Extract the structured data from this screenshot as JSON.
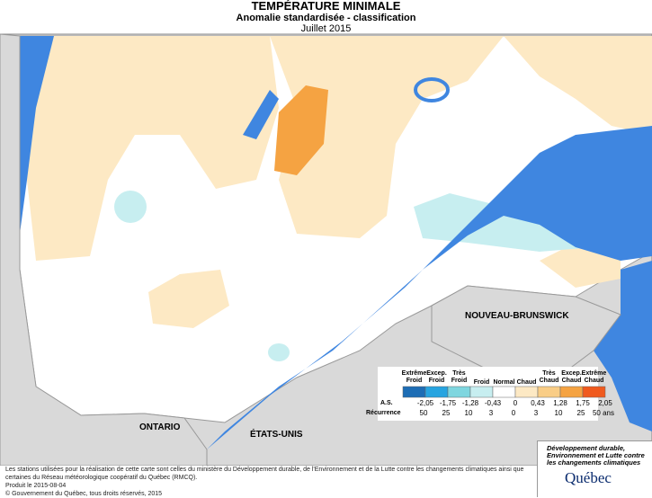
{
  "header": {
    "title": "TEMPÉRATURE MINIMALE",
    "subtitle": "Anomalie standardisée - classification",
    "date": "Juillet 2015"
  },
  "map_labels": [
    "ONTARIO",
    "ÉTATS-UNIS",
    "NOUVEAU-BRUNSWICK"
  ],
  "legend": {
    "classes": [
      {
        "label": "Extrême Froid",
        "color": "#1d6db5"
      },
      {
        "label": "Excep. Froid",
        "color": "#27a4e0"
      },
      {
        "label": "Très Froid",
        "color": "#7fd6df"
      },
      {
        "label": "Froid",
        "color": "#c7eef0"
      },
      {
        "label": "Normal",
        "color": "#ffffff"
      },
      {
        "label": "Chaud",
        "color": "#fde9c4"
      },
      {
        "label": "Très Chaud",
        "color": "#f9cd86"
      },
      {
        "label": "Excep. Chaud",
        "color": "#f5a342"
      },
      {
        "label": "Extrême Chaud",
        "color": "#f05a1e"
      }
    ],
    "as_label": "A.S.",
    "as_values": [
      "-2,05",
      "-1,75",
      "-1,28",
      "-0,43",
      "0",
      "0,43",
      "1,28",
      "1,75",
      "2,05"
    ],
    "recurrence_label": "Récurrence",
    "recurrence_values": [
      "50",
      "25",
      "10",
      "3",
      "0",
      "3",
      "10",
      "25",
      "50 ans"
    ]
  },
  "footer": {
    "note": "Les stations utilisées pour la réalisation de cette carte sont celles du ministère du Développement durable, de l'Environnement et de la Lutte contre les changements climatiques ainsi que certaines du Réseau météorologique coopératif du Québec (RMCQ).",
    "produced": "Produit le 2015-08-04",
    "copyright": "© Gouvernement du Québec, tous droits réservés, 2015"
  },
  "logo": {
    "ministry": "Développement durable, Environnement et Lutte contre les changements climatiques",
    "name": "Québec"
  }
}
